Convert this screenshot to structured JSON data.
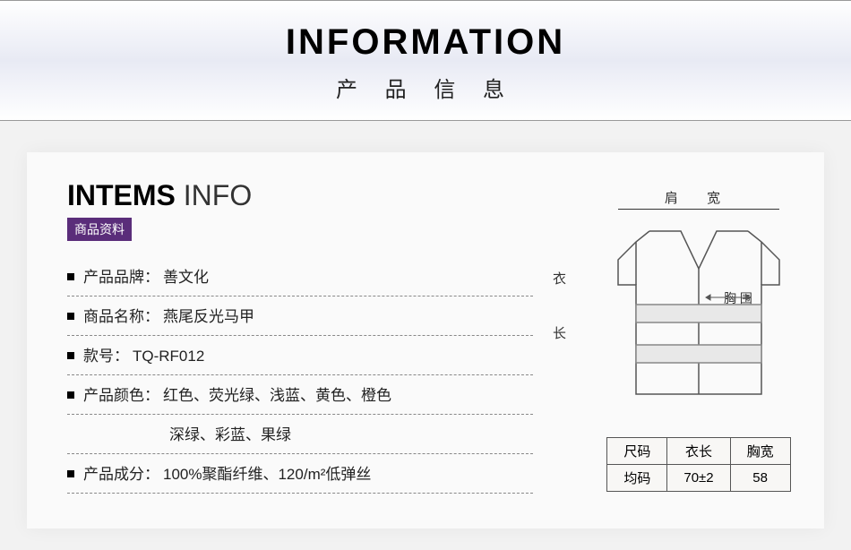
{
  "header": {
    "title_en": "INFORMATION",
    "title_cn": "产 品 信 息"
  },
  "panel": {
    "intems_bold": "INTEMS",
    "intems_thin": " INFO",
    "badge": "商品资料",
    "specs": [
      {
        "label": "产品品牌：",
        "value": "善文化"
      },
      {
        "label": "商品名称：",
        "value": "燕尾反光马甲"
      },
      {
        "label": "款号：",
        "value": "TQ-RF012"
      },
      {
        "label": "产品颜色：",
        "value": "红色、荧光绿、浅蓝、黄色、橙色"
      },
      {
        "label": "",
        "value": "深绿、彩蓝、果绿",
        "indent": true
      },
      {
        "label": "产品成分：",
        "value": "100%聚酯纤维、120/m²低弹丝"
      }
    ]
  },
  "diagram": {
    "shoulder_label": "肩 宽",
    "side_label_top": "衣",
    "side_label_bottom": "长",
    "chest_label": "胸 围"
  },
  "size_table": {
    "headers": [
      "尺码",
      "衣长",
      "胸宽"
    ],
    "row": [
      "均码",
      "70±2",
      "58"
    ]
  },
  "colors": {
    "badge_bg": "#5a2d7a",
    "text": "#222222",
    "border": "#555555"
  }
}
